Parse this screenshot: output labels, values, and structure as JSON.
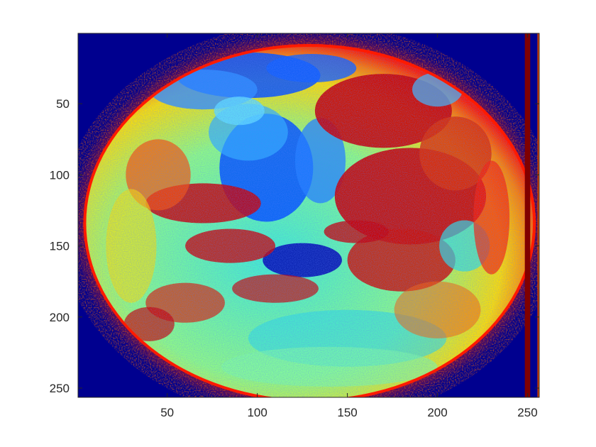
{
  "chart_data": {
    "type": "heatmap",
    "title": "",
    "xlabel": "",
    "ylabel": "",
    "xlim": [
      0.5,
      256.5
    ],
    "ylim": [
      0.5,
      256.5
    ],
    "y_reversed": true,
    "grid": false,
    "legend": "none",
    "colormap": "jet",
    "x_ticks": [
      50,
      100,
      150,
      200,
      250
    ],
    "x_tick_labels": [
      "50",
      "100",
      "150",
      "200",
      "250"
    ],
    "y_ticks": [
      50,
      100,
      150,
      200,
      250
    ],
    "y_tick_labels": [
      "50",
      "100",
      "150",
      "200",
      "250"
    ],
    "colors": {
      "background": "#00008F",
      "limb": "#FF1A00",
      "ocean": "#0050FF",
      "cloud_land": "#CC0000",
      "cyan": "#30E0E0",
      "yellow": "#FFE000"
    },
    "content": "Earth disk image with jet colormap, centered near (129, 134), semi-axes approximately 124 x 124 pixels, dark red vertical strip near column 249-252"
  }
}
